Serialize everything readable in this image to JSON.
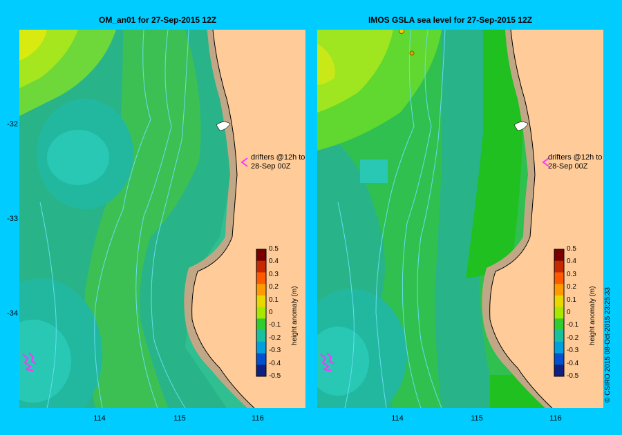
{
  "panels": [
    {
      "title": "OM_an01  for 27-Sep-2015 12Z",
      "drifter_label_line1": "drifters @12h to",
      "drifter_label_line2": "28-Sep 00Z"
    },
    {
      "title": "IMOS GSLA sea level  for 27-Sep-2015 12Z",
      "drifter_label_line1": "drifters @12h to",
      "drifter_label_line2": "28-Sep 00Z"
    }
  ],
  "y_axis_labels": [
    "-32",
    "-33",
    "-34"
  ],
  "x_axis_labels": [
    "114",
    "115",
    "116"
  ],
  "colorbar": {
    "title": "height anomaly (m)",
    "ticks": [
      "0.5",
      "0.4",
      "0.3",
      "0.2",
      "0.1",
      "0",
      "-0.1",
      "-0.2",
      "-0.3",
      "-0.4",
      "-0.5"
    ],
    "colors": [
      "#7a0000",
      "#c62800",
      "#ff5a00",
      "#ff9b00",
      "#e8d800",
      "#a8e800",
      "#30cc30",
      "#18c0a0",
      "#00a0e0",
      "#0050d0",
      "#102080"
    ]
  },
  "colors": {
    "background": "#00ccff",
    "land": "#ffcc99",
    "shelf": "#c2a787",
    "drifter": "#ff33ff",
    "contour": "#66ddee"
  },
  "copyright": "© CSIRO 2015   08-Oct-2015 23:25:33"
}
